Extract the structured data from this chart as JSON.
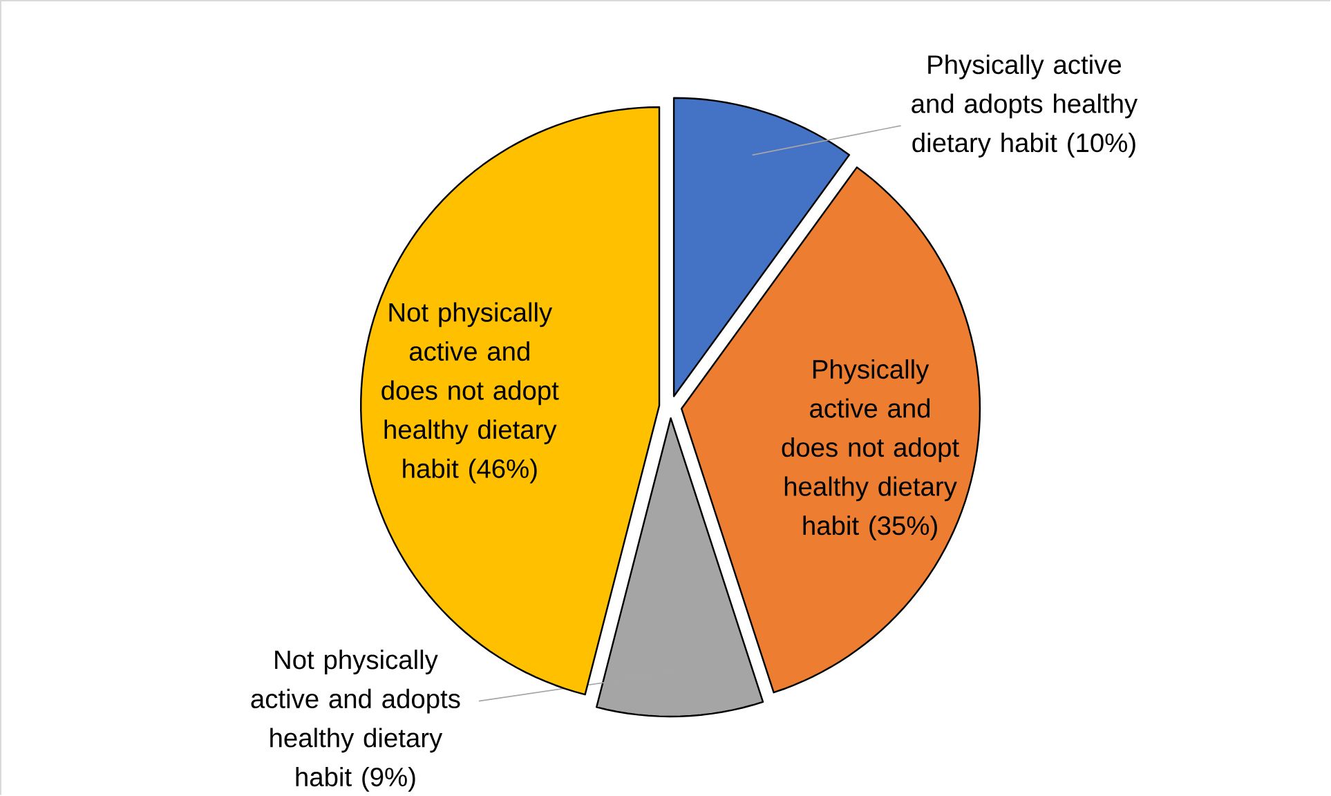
{
  "chart_data": {
    "type": "pie",
    "categories": [
      "Physically active and adopts healthy dietary habit",
      "Physically active and does not adopt healthy dietary habit",
      "Not physically active and adopts healthy dietary habit",
      "Not physically active and does not adopt healthy dietary habit"
    ],
    "values": [
      10,
      35,
      9,
      46
    ],
    "value_labels": [
      "(10%)",
      "(35%)",
      "(9%)",
      "(46%)"
    ],
    "colors": [
      "#4472c4",
      "#ed7d31",
      "#a5a5a5",
      "#ffc000"
    ]
  }
}
